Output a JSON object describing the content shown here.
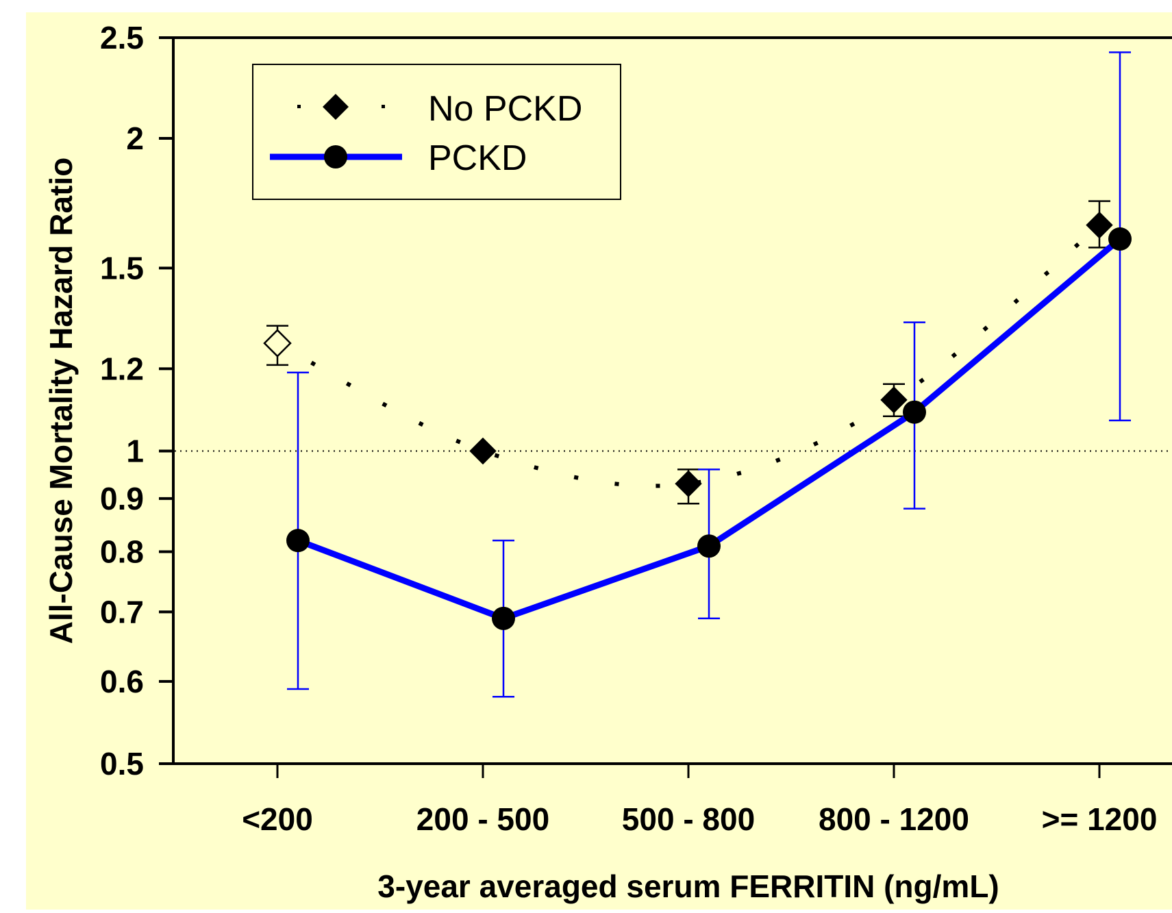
{
  "background_color": "#FFFFCC",
  "chart_data": {
    "type": "line",
    "title": "",
    "xlabel": "3-year averaged serum FERRITIN (ng/mL)",
    "ylabel": "All-Cause Mortality Hazard Ratio",
    "y_scale": "log",
    "ylim": [
      0.5,
      2.5
    ],
    "yticks": [
      "0.5",
      "0.6",
      "0.7",
      "0.8",
      "0.9",
      "1",
      "1.2",
      "1.5",
      "2",
      "2.5"
    ],
    "reference_line": 1,
    "grid": false,
    "legend_position": "top-left",
    "categories": [
      "<200",
      "200 - 500",
      "500 - 800",
      "800 - 1200",
      ">= 1200"
    ],
    "series": [
      {
        "name": "No PCKD",
        "color": "#000000",
        "marker": "diamond",
        "line": "dotted",
        "values": [
          1.27,
          1.0,
          0.93,
          1.12,
          1.65
        ],
        "ci_lower": [
          1.21,
          null,
          0.89,
          1.08,
          1.57
        ],
        "ci_upper": [
          1.32,
          null,
          0.96,
          1.16,
          1.74
        ],
        "hollow_markers": [
          true,
          false,
          false,
          false,
          false
        ]
      },
      {
        "name": "PCKD",
        "color": "#0000FF",
        "marker": "circle",
        "line": "solid",
        "values": [
          0.82,
          0.69,
          0.81,
          1.09,
          1.6
        ],
        "ci_lower": [
          0.59,
          0.58,
          0.69,
          0.88,
          1.07
        ],
        "ci_upper": [
          1.19,
          0.82,
          0.96,
          1.33,
          2.42
        ]
      }
    ]
  }
}
